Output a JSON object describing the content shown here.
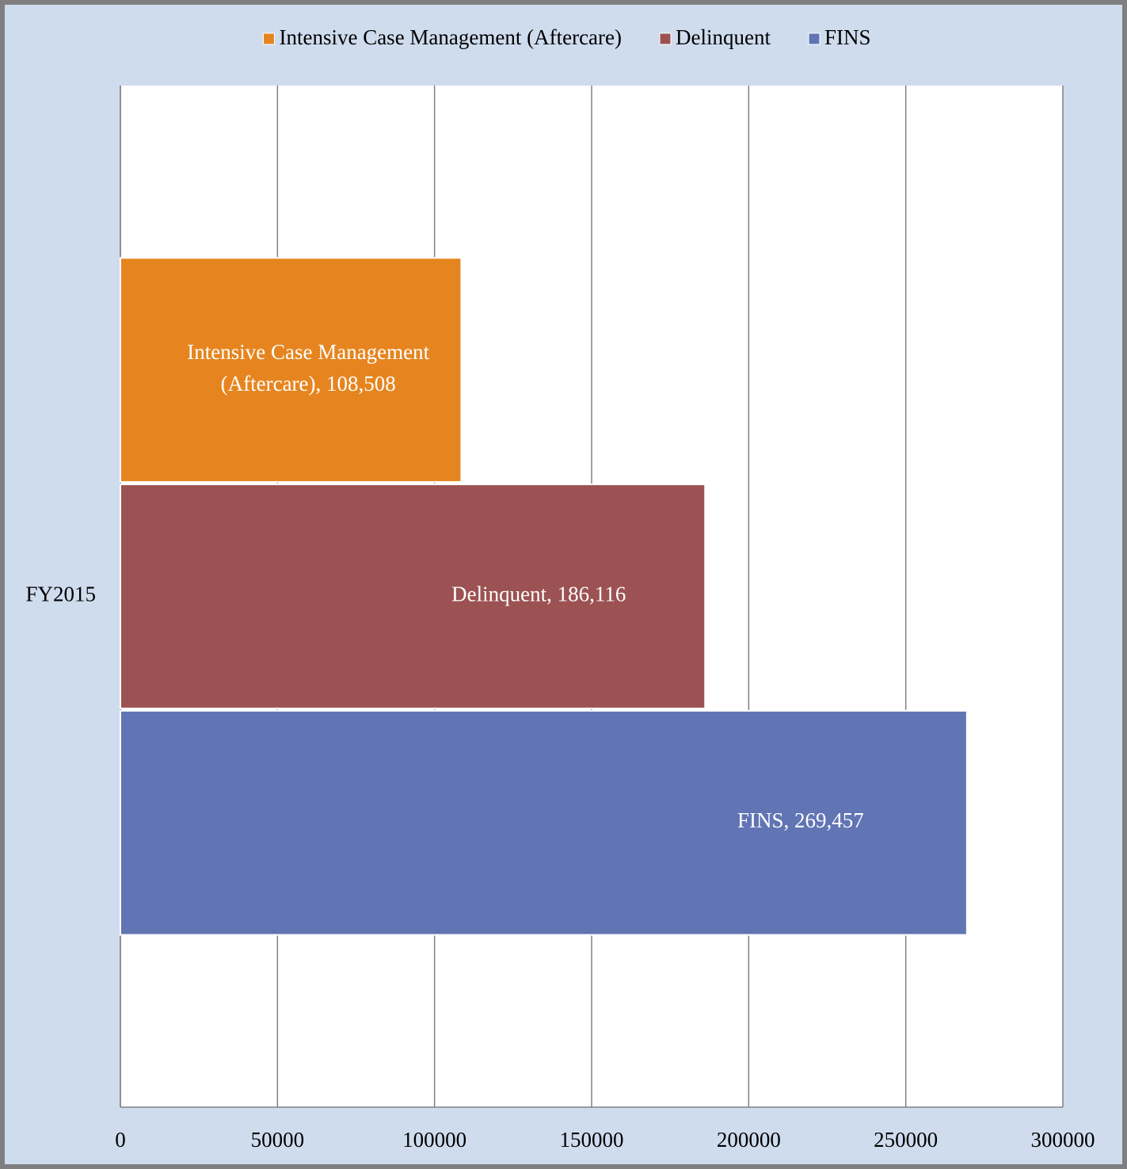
{
  "chart_data": {
    "type": "hbar",
    "categories": [
      "FY2015"
    ],
    "series": [
      {
        "name": "Intensive Case Management (Aftercare)",
        "color": "#e6851f",
        "values": [
          108508
        ],
        "value_labels": [
          "Intensive Case Management (Aftercare),  108,508"
        ]
      },
      {
        "name": "Delinquent",
        "color": "#9c5252",
        "values": [
          186116
        ],
        "value_labels": [
          "Delinquent,  186,116"
        ]
      },
      {
        "name": "FINS",
        "color": "#6175b4",
        "values": [
          269457
        ],
        "value_labels": [
          "FINS,  269,457"
        ]
      }
    ],
    "xlim": [
      0,
      300000
    ],
    "xticks": [
      0,
      50000,
      100000,
      150000,
      200000,
      250000,
      300000
    ],
    "grid": true,
    "legend": "top"
  }
}
